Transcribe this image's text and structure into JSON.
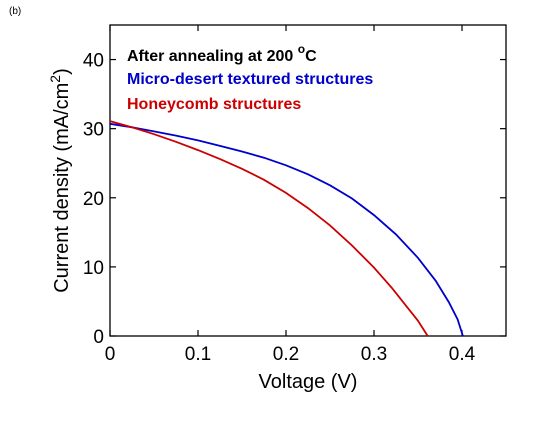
{
  "panel_label": "(b)",
  "chart_data": {
    "type": "line",
    "title": "After annealing at 200",
    "title_sup": "o",
    "title_unit": "C",
    "xlabel": "Voltage (V)",
    "ylabel_prefix": "Current density (mA/cm",
    "ylabel_sup": "2",
    "ylabel_suffix": ")",
    "xlim": [
      0,
      0.45
    ],
    "ylim": [
      0,
      45
    ],
    "xticks": [
      0,
      0.1,
      0.2,
      0.3,
      0.4
    ],
    "xtick_labels": [
      "0",
      "0.1",
      "0.2",
      "0.3",
      "0.4"
    ],
    "yticks": [
      0,
      10,
      20,
      30,
      40
    ],
    "ytick_labels": [
      "0",
      "10",
      "20",
      "30",
      "40"
    ],
    "grid": false,
    "legend_position": "top-left",
    "series": [
      {
        "name": "Micro-desert textured structures",
        "color": "#0000cc",
        "points": [
          [
            0.0,
            30.7
          ],
          [
            0.025,
            30.2
          ],
          [
            0.05,
            29.6
          ],
          [
            0.075,
            29.0
          ],
          [
            0.1,
            28.3
          ],
          [
            0.125,
            27.5
          ],
          [
            0.15,
            26.7
          ],
          [
            0.175,
            25.8
          ],
          [
            0.2,
            24.7
          ],
          [
            0.225,
            23.4
          ],
          [
            0.25,
            21.8
          ],
          [
            0.275,
            19.9
          ],
          [
            0.3,
            17.5
          ],
          [
            0.325,
            14.7
          ],
          [
            0.35,
            11.3
          ],
          [
            0.37,
            8.0
          ],
          [
            0.385,
            4.9
          ],
          [
            0.395,
            2.4
          ],
          [
            0.401,
            0.0
          ]
        ]
      },
      {
        "name": "Honeycomb structures",
        "color": "#cc0000",
        "points": [
          [
            0.0,
            31.1
          ],
          [
            0.025,
            30.2
          ],
          [
            0.05,
            29.2
          ],
          [
            0.075,
            28.1
          ],
          [
            0.1,
            26.9
          ],
          [
            0.125,
            25.6
          ],
          [
            0.15,
            24.2
          ],
          [
            0.175,
            22.6
          ],
          [
            0.2,
            20.7
          ],
          [
            0.225,
            18.5
          ],
          [
            0.25,
            16.0
          ],
          [
            0.275,
            13.1
          ],
          [
            0.3,
            9.9
          ],
          [
            0.32,
            7.0
          ],
          [
            0.335,
            4.6
          ],
          [
            0.35,
            2.2
          ],
          [
            0.361,
            0.0
          ]
        ]
      }
    ]
  }
}
